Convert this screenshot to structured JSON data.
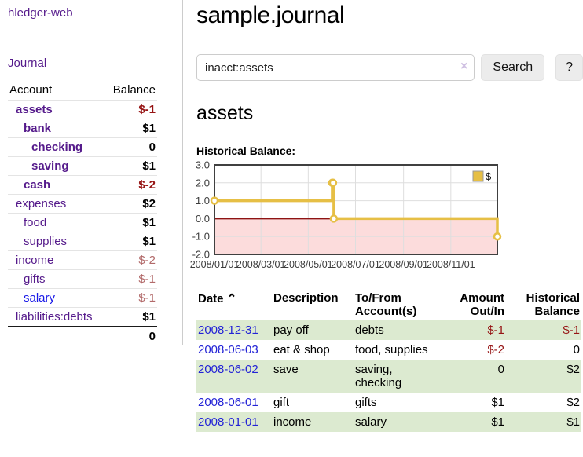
{
  "app": {
    "brand": "hledger-web",
    "nav_journal": "Journal"
  },
  "sidebar": {
    "headers": {
      "account": "Account",
      "balance": "Balance"
    },
    "accounts": [
      {
        "name": "assets",
        "balance": "$-1"
      },
      {
        "name": "bank",
        "balance": "$1"
      },
      {
        "name": "checking",
        "balance": "0"
      },
      {
        "name": "saving",
        "balance": "$1"
      },
      {
        "name": "cash",
        "balance": "$-2"
      },
      {
        "name": "expenses",
        "balance": "$2"
      },
      {
        "name": "food",
        "balance": "$1"
      },
      {
        "name": "supplies",
        "balance": "$1"
      },
      {
        "name": "income",
        "balance": "$-2"
      },
      {
        "name": "gifts",
        "balance": "$-1"
      },
      {
        "name": "salary",
        "balance": "$-1"
      },
      {
        "name": "liabilities:debts",
        "balance": "$1"
      }
    ],
    "total": "0"
  },
  "main": {
    "title": "sample.journal",
    "search": {
      "value": "inacct:assets",
      "clear_icon": "×",
      "search_button": "Search",
      "help_button": "?"
    },
    "account_heading": "assets",
    "chart_label": "Historical Balance:"
  },
  "chart_data": {
    "type": "line",
    "title": "Historical Balance:",
    "step": true,
    "series": [
      {
        "name": "$",
        "points": [
          {
            "date": "2008-01-01",
            "day": 0,
            "value": 1.0
          },
          {
            "date": "2008-06-01",
            "day": 152,
            "value": 2.0
          },
          {
            "date": "2008-06-02",
            "day": 153,
            "value": 2.0
          },
          {
            "date": "2008-06-03",
            "day": 154,
            "value": 0.0
          },
          {
            "date": "2008-12-31",
            "day": 365,
            "value": -1.0
          }
        ]
      }
    ],
    "x_range_days": [
      0,
      365
    ],
    "x_ticks": [
      {
        "label": "2008/01/01",
        "day": 0
      },
      {
        "label": "2008/03/01",
        "day": 60
      },
      {
        "label": "2008/05/01",
        "day": 121
      },
      {
        "label": "2008/07/01",
        "day": 182
      },
      {
        "label": "2008/09/01",
        "day": 244
      },
      {
        "label": "2008/11/01",
        "day": 305
      }
    ],
    "y_ticks": [
      3.0,
      2.0,
      1.0,
      0.0,
      -1.0,
      -2.0
    ],
    "ylim": [
      -2.0,
      3.0
    ],
    "grid": true,
    "legend_position": "top-right",
    "legend_label": "$",
    "colors": {
      "line": "#e6bf45",
      "marker_fill": "#ffffff",
      "negative_region": "#fcdcdc",
      "zero_line": "#8e1414",
      "border": "#404040",
      "grid": "#dedede",
      "tick_text": "#3c3c3c",
      "legend_box_border": "#999999"
    }
  },
  "register": {
    "headers": {
      "date": "Date",
      "sort_indicator": "⌃",
      "description": "Description",
      "accounts_line1": "To/From",
      "accounts_line2": "Account(s)",
      "amount_line1": "Amount",
      "amount_line2": "Out/In",
      "balance_line1": "Historical",
      "balance_line2": "Balance"
    },
    "rows": [
      {
        "date": "2008-12-31",
        "description": "pay off",
        "accounts": "debts",
        "amount": "$-1",
        "balance": "$-1"
      },
      {
        "date": "2008-06-03",
        "description": "eat & shop",
        "accounts": "food, supplies",
        "amount": "$-2",
        "balance": "0"
      },
      {
        "date": "2008-06-02",
        "description": "save",
        "accounts": "saving, checking",
        "amount": "0",
        "balance": "$2"
      },
      {
        "date": "2008-06-01",
        "description": "gift",
        "accounts": "gifts",
        "amount": "$1",
        "balance": "$2"
      },
      {
        "date": "2008-01-01",
        "description": "income",
        "accounts": "salary",
        "amount": "$1",
        "balance": "$1"
      }
    ]
  }
}
